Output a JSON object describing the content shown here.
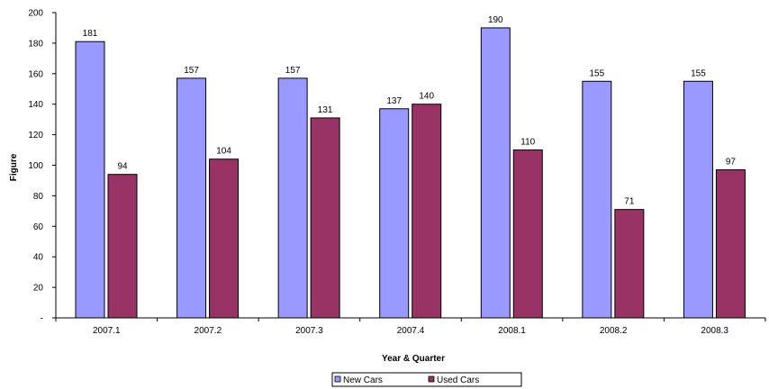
{
  "chart_data": {
    "type": "bar",
    "title": "",
    "xlabel": "Year & Quarter",
    "ylabel": "Figure",
    "ylim": [
      0,
      200
    ],
    "yticks": [
      0,
      20,
      40,
      60,
      80,
      100,
      120,
      140,
      160,
      180,
      200
    ],
    "ytick_labels": [
      "-",
      "20",
      "40",
      "60",
      "80",
      "100",
      "120",
      "140",
      "160",
      "180",
      "200"
    ],
    "categories": [
      "2007.1",
      "2007.2",
      "2007.3",
      "2007.4",
      "2008.1",
      "2008.2",
      "2008.3"
    ],
    "series": [
      {
        "name": "New Cars",
        "color": "#9999ff",
        "values": [
          181,
          157,
          157,
          137,
          190,
          155,
          155
        ]
      },
      {
        "name": "Used Cars",
        "color": "#993366",
        "values": [
          94,
          104,
          131,
          140,
          110,
          71,
          97
        ]
      }
    ],
    "grid": false,
    "legend_position": "bottom"
  }
}
